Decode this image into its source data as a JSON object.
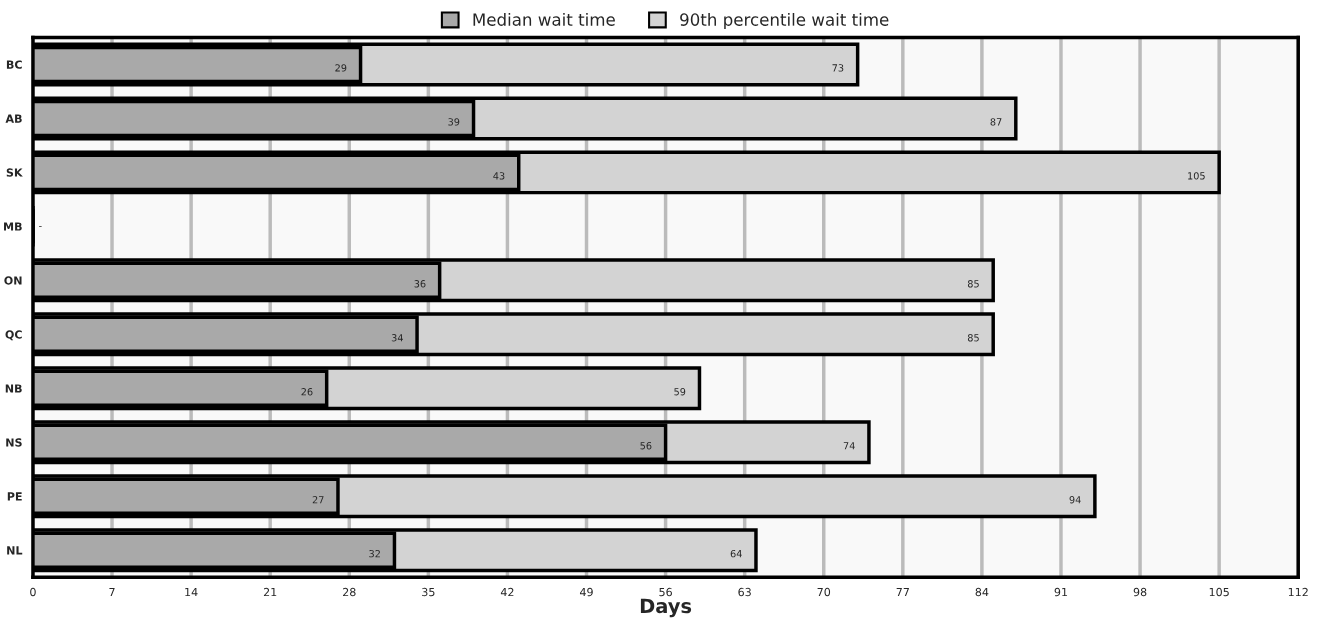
{
  "chart_data": {
    "type": "bar",
    "orientation": "horizontal",
    "xlabel": "Days",
    "categories": [
      "BC",
      "AB",
      "SK",
      "MB",
      "ON",
      "QC",
      "NB",
      "NS",
      "PE",
      "NL"
    ],
    "series": [
      {
        "name": "Median wait time",
        "color": "#a9a9a9",
        "values": [
          29,
          39,
          43,
          null,
          36,
          34,
          26,
          56,
          27,
          32
        ],
        "value_labels": [
          "29",
          "39",
          "43",
          "-",
          "36",
          "34",
          "26",
          "56",
          "27",
          "32"
        ]
      },
      {
        "name": "90th percentile wait time",
        "color": "#d3d3d3",
        "values": [
          73,
          87,
          105,
          null,
          85,
          85,
          59,
          74,
          94,
          64
        ],
        "value_labels": [
          "73",
          "87",
          "105",
          null,
          "85",
          "85",
          "59",
          "74",
          "94",
          "64"
        ]
      }
    ],
    "xlim": [
      0,
      112
    ],
    "xticks": [
      0,
      7,
      14,
      21,
      28,
      35,
      42,
      49,
      56,
      63,
      70,
      77,
      84,
      91,
      98,
      105,
      112
    ],
    "grid": "x",
    "legend": "top"
  }
}
